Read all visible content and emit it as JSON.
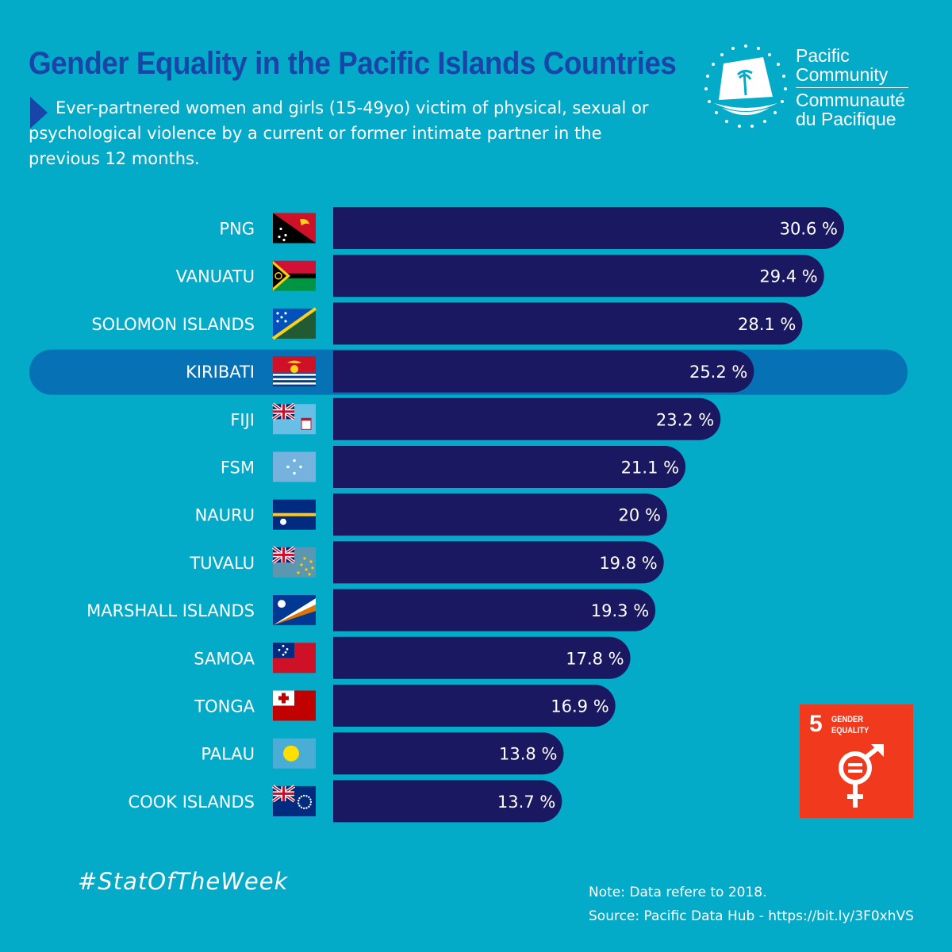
{
  "title": "Gender Equality in the Pacific Islands Countries",
  "subtitle": "Ever-partnered women and girls (15-49yo) victim of physical, sexual or psychological violence by a current or former intimate partner in the previous 12 months.",
  "org": {
    "name_en": "Pacific Community",
    "name_fr": "Communauté du Pacifique"
  },
  "sdg": {
    "number": "5",
    "label": "GENDER EQUALITY",
    "color": "#f0391d"
  },
  "hashtag": "#StatOfTheWeek",
  "note": "Note:  Data refere to 2018.",
  "source": "Source: Pacific Data Hub - https://bit.ly/3F0xhVS",
  "colors": {
    "background": "#03abc8",
    "bar": "#1b1862",
    "highlight_row": "#0771b6",
    "title": "#1846a8"
  },
  "chart_data": {
    "type": "bar",
    "orientation": "horizontal",
    "unit": "%",
    "categories": [
      "PNG",
      "VANUATU",
      "SOLOMON ISLANDS",
      "KIRIBATI",
      "FIJI",
      "FSM",
      "NAURU",
      "TUVALU",
      "MARSHALL ISLANDS",
      "SAMOA",
      "TONGA",
      "PALAU",
      "COOK ISLANDS"
    ],
    "values": [
      30.6,
      29.4,
      28.1,
      25.2,
      23.2,
      21.1,
      20,
      19.8,
      19.3,
      17.8,
      16.9,
      13.8,
      13.7
    ],
    "value_labels": [
      "30.6 %",
      "29.4 %",
      "28.1 %",
      "25.2 %",
      "23.2 %",
      "21.1 %",
      "20 %",
      "19.8 %",
      "19.3 %",
      "17.8 %",
      "16.9 %",
      "13.8 %",
      "13.7 %"
    ],
    "flags": [
      "png-flag-icon",
      "vanuatu-flag-icon",
      "solomon-islands-flag-icon",
      "kiribati-flag-icon",
      "fiji-flag-icon",
      "fsm-flag-icon",
      "nauru-flag-icon",
      "tuvalu-flag-icon",
      "marshall-islands-flag-icon",
      "samoa-flag-icon",
      "tonga-flag-icon",
      "palau-flag-icon",
      "cook-islands-flag-icon"
    ],
    "highlighted": "KIRIBATI",
    "xlim": [
      0,
      30.6
    ],
    "grid": false,
    "legend": false
  }
}
